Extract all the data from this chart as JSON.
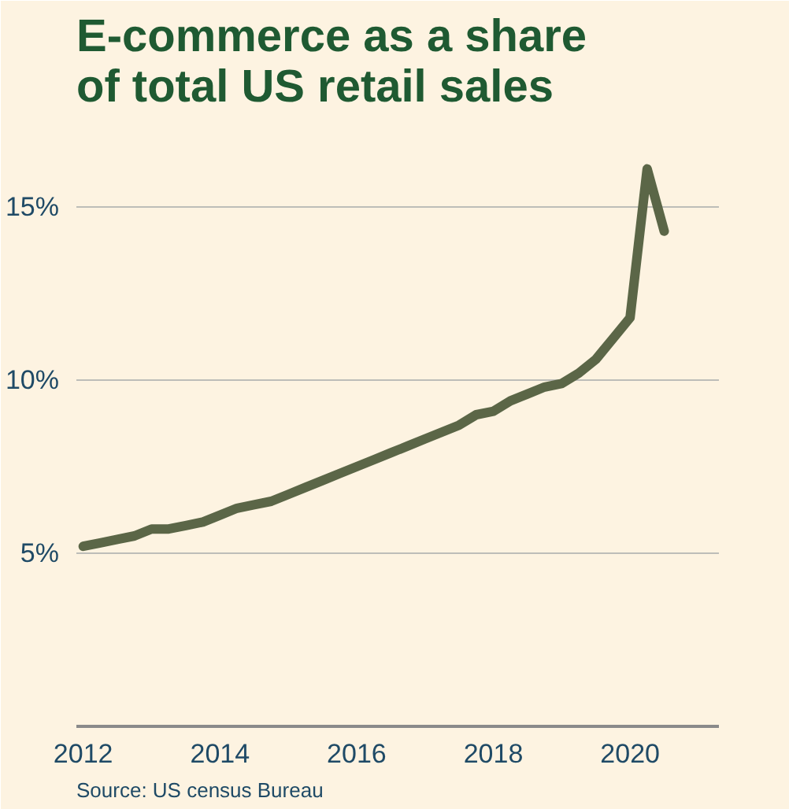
{
  "chart_data": {
    "type": "line",
    "title": "E-commerce as a share\nof total US retail sales",
    "x": [
      2012,
      2012.25,
      2012.5,
      2012.75,
      2013,
      2013.25,
      2013.5,
      2013.75,
      2014,
      2014.25,
      2014.5,
      2014.75,
      2015,
      2015.25,
      2015.5,
      2015.75,
      2016,
      2016.25,
      2016.5,
      2016.75,
      2017,
      2017.25,
      2017.5,
      2017.75,
      2018,
      2018.25,
      2018.5,
      2018.75,
      2019,
      2019.25,
      2019.5,
      2019.75,
      2020,
      2020.25,
      2020.5
    ],
    "series": [
      {
        "color": "#5b6647",
        "values": [
          5.2,
          5.3,
          5.4,
          5.5,
          5.7,
          5.7,
          5.8,
          5.9,
          6.1,
          6.3,
          6.4,
          6.5,
          6.7,
          6.9,
          7.1,
          7.3,
          7.5,
          7.7,
          7.9,
          8.1,
          8.3,
          8.5,
          8.7,
          9.0,
          9.1,
          9.4,
          9.6,
          9.8,
          9.9,
          10.2,
          10.6,
          11.2,
          11.8,
          16.1,
          14.3
        ]
      }
    ],
    "xlim": [
      2011.9,
      2021.3
    ],
    "ylim": [
      0,
      17.5
    ],
    "xticks": [
      2012,
      2014,
      2016,
      2018,
      2020
    ],
    "yticks": [
      {
        "value": 5,
        "label": "5%"
      },
      {
        "value": 10,
        "label": "10%"
      },
      {
        "value": 15,
        "label": "15%"
      }
    ],
    "grid": "y",
    "marker": "none",
    "line_style": "solid",
    "annotations": [
      "Source: US census Bureau"
    ]
  }
}
